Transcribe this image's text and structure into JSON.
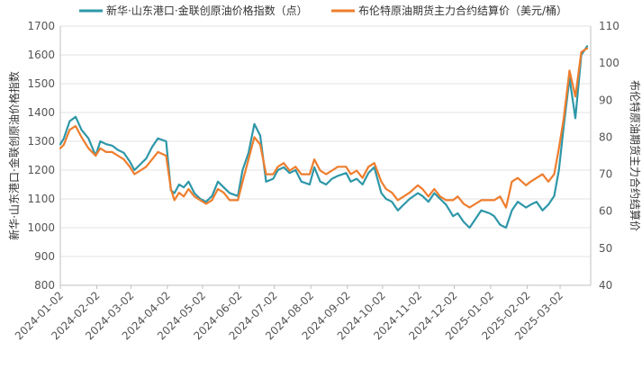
{
  "chart_data": {
    "type": "line",
    "title": "",
    "ylabel_left": "新华·山东港口·金联创原油价格指数",
    "ylabel_right": "布伦特原油期货主力合约结算价",
    "ylim_left": [
      800,
      1700
    ],
    "ylim_right": [
      40,
      110
    ],
    "yticks_left": [
      800,
      900,
      1000,
      1100,
      1200,
      1300,
      1400,
      1500,
      1600,
      1700
    ],
    "yticks_right": [
      40,
      50,
      60,
      70,
      80,
      90,
      100,
      110
    ],
    "x_tick_labels": [
      "2024-01-02",
      "2024-02-02",
      "2024-03-02",
      "2024-04-02",
      "2024-05-02",
      "2024-06-02",
      "2024-07-02",
      "2024-08-02",
      "2024-09-02",
      "2024-10-02",
      "2024-11-02",
      "2024-12-02",
      "2025-01-02",
      "2025-02-02",
      "2025-03-02"
    ],
    "grid": true,
    "legend_position": "top",
    "colors": {
      "series1": "#2e97a8",
      "series2": "#ee7d2d"
    },
    "series": [
      {
        "name": "新华·山东港口·金联创原油价格指数（点）",
        "axis": "left",
        "x": [
          "2024-01-02",
          "2024-01-05",
          "2024-01-10",
          "2024-01-15",
          "2024-01-20",
          "2024-01-26",
          "2024-02-01",
          "2024-02-05",
          "2024-02-10",
          "2024-02-15",
          "2024-02-20",
          "2024-02-25",
          "2024-03-01",
          "2024-03-05",
          "2024-03-10",
          "2024-03-15",
          "2024-03-20",
          "2024-03-25",
          "2024-04-01",
          "2024-04-05",
          "2024-04-08",
          "2024-04-12",
          "2024-04-16",
          "2024-04-20",
          "2024-04-25",
          "2024-04-30",
          "2024-05-05",
          "2024-05-10",
          "2024-05-15",
          "2024-05-20",
          "2024-05-25",
          "2024-06-01",
          "2024-06-05",
          "2024-06-10",
          "2024-06-15",
          "2024-06-20",
          "2024-06-25",
          "2024-07-01",
          "2024-07-05",
          "2024-07-10",
          "2024-07-15",
          "2024-07-20",
          "2024-07-25",
          "2024-08-01",
          "2024-08-05",
          "2024-08-10",
          "2024-08-15",
          "2024-08-20",
          "2024-08-25",
          "2024-09-01",
          "2024-09-05",
          "2024-09-10",
          "2024-09-15",
          "2024-09-20",
          "2024-09-25",
          "2024-10-01",
          "2024-10-05",
          "2024-10-10",
          "2024-10-15",
          "2024-10-20",
          "2024-10-25",
          "2024-11-01",
          "2024-11-05",
          "2024-11-10",
          "2024-11-15",
          "2024-11-20",
          "2024-11-25",
          "2024-12-01",
          "2024-12-05",
          "2024-12-10",
          "2024-12-15",
          "2024-12-20",
          "2024-12-25",
          "2025-01-01",
          "2025-01-05",
          "2025-01-10",
          "2025-01-15",
          "2025-01-20",
          "2025-01-25",
          "2025-02-01",
          "2025-02-05",
          "2025-02-10",
          "2025-02-15",
          "2025-02-20",
          "2025-02-25",
          "2025-03-01",
          "2025-03-05",
          "2025-03-10",
          "2025-03-15",
          "2025-03-20",
          "2025-03-25"
        ],
        "values": [
          1290,
          1310,
          1370,
          1385,
          1340,
          1310,
          1250,
          1300,
          1290,
          1285,
          1270,
          1260,
          1230,
          1200,
          1220,
          1240,
          1280,
          1310,
          1300,
          1130,
          1120,
          1150,
          1140,
          1160,
          1120,
          1100,
          1090,
          1110,
          1160,
          1140,
          1120,
          1110,
          1200,
          1260,
          1360,
          1320,
          1160,
          1170,
          1200,
          1210,
          1190,
          1200,
          1160,
          1150,
          1210,
          1160,
          1150,
          1170,
          1180,
          1190,
          1160,
          1170,
          1150,
          1190,
          1210,
          1120,
          1100,
          1090,
          1060,
          1080,
          1100,
          1120,
          1110,
          1090,
          1120,
          1100,
          1080,
          1040,
          1050,
          1020,
          1000,
          1030,
          1060,
          1050,
          1040,
          1010,
          1000,
          1060,
          1090,
          1070,
          1080,
          1090,
          1060,
          1080,
          1110,
          1200,
          1350,
          1520,
          1380,
          1600,
          1630
        ]
      },
      {
        "name": "布伦特原油期货主力合约结算价（美元/桶）",
        "axis": "right",
        "x": [
          "2024-01-02",
          "2024-01-05",
          "2024-01-10",
          "2024-01-15",
          "2024-01-20",
          "2024-01-26",
          "2024-02-01",
          "2024-02-05",
          "2024-02-10",
          "2024-02-15",
          "2024-02-20",
          "2024-02-25",
          "2024-03-01",
          "2024-03-05",
          "2024-03-10",
          "2024-03-15",
          "2024-03-20",
          "2024-03-25",
          "2024-04-01",
          "2024-04-05",
          "2024-04-08",
          "2024-04-12",
          "2024-04-16",
          "2024-04-20",
          "2024-04-25",
          "2024-04-30",
          "2024-05-05",
          "2024-05-10",
          "2024-05-15",
          "2024-05-20",
          "2024-05-25",
          "2024-06-01",
          "2024-06-05",
          "2024-06-10",
          "2024-06-15",
          "2024-06-20",
          "2024-06-25",
          "2024-07-01",
          "2024-07-05",
          "2024-07-10",
          "2024-07-15",
          "2024-07-20",
          "2024-07-25",
          "2024-08-01",
          "2024-08-05",
          "2024-08-10",
          "2024-08-15",
          "2024-08-20",
          "2024-08-25",
          "2024-09-01",
          "2024-09-05",
          "2024-09-10",
          "2024-09-15",
          "2024-09-20",
          "2024-09-25",
          "2024-10-01",
          "2024-10-05",
          "2024-10-10",
          "2024-10-15",
          "2024-10-20",
          "2024-10-25",
          "2024-11-01",
          "2024-11-05",
          "2024-11-10",
          "2024-11-15",
          "2024-11-20",
          "2024-11-25",
          "2024-12-01",
          "2024-12-05",
          "2024-12-10",
          "2024-12-15",
          "2024-12-20",
          "2024-12-25",
          "2025-01-01",
          "2025-01-05",
          "2025-01-10",
          "2025-01-15",
          "2025-01-20",
          "2025-01-25",
          "2025-02-01",
          "2025-02-05",
          "2025-02-10",
          "2025-02-15",
          "2025-02-20",
          "2025-02-25",
          "2025-03-01",
          "2025-03-05",
          "2025-03-10",
          "2025-03-15",
          "2025-03-20",
          "2025-03-25"
        ],
        "values": [
          77,
          78,
          82,
          83,
          80,
          77,
          75,
          77,
          76,
          76,
          75,
          74,
          72,
          70,
          71,
          72,
          74,
          76,
          75,
          66,
          63,
          65,
          64,
          66,
          64,
          63,
          62,
          63,
          66,
          65,
          63,
          63,
          68,
          74,
          80,
          78,
          70,
          70,
          72,
          73,
          71,
          72,
          70,
          70,
          74,
          71,
          70,
          71,
          72,
          72,
          70,
          71,
          69,
          72,
          73,
          68,
          66,
          65,
          63,
          64,
          65,
          67,
          66,
          64,
          66,
          64,
          63,
          63,
          64,
          62,
          61,
          62,
          63,
          63,
          63,
          64,
          61,
          68,
          69,
          67,
          68,
          69,
          70,
          68,
          70,
          77,
          85,
          98,
          91,
          103,
          104
        ]
      }
    ]
  }
}
